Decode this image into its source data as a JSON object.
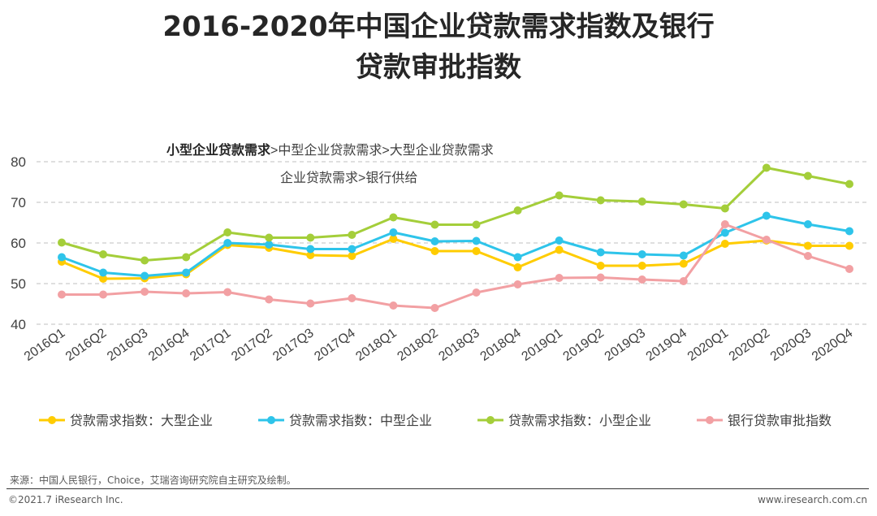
{
  "title_line1": "2016-2020年中国企业贷款需求指数及银行",
  "title_line2": "贷款审批指数",
  "annotation_line1_bold": "小型企业贷款需求",
  "annotation_line1_rest": ">中型企业贷款需求>大型企业贷款需求",
  "annotation_line2": "企业贷款需求>银行供给",
  "source": "来源：中国人民银行，Choice，艾瑞咨询研究院自主研究及绘制。",
  "copyright": "©2021.7 iResearch Inc.",
  "website": "www.iresearch.com.cn",
  "chart_data": {
    "type": "line",
    "categories": [
      "2016Q1",
      "2016Q2",
      "2016Q3",
      "2016Q4",
      "2017Q1",
      "2017Q2",
      "2017Q3",
      "2017Q4",
      "2018Q1",
      "2018Q2",
      "2018Q3",
      "2018Q4",
      "2019Q1",
      "2019Q2",
      "2019Q3",
      "2019Q4",
      "2020Q1",
      "2020Q2",
      "2020Q3",
      "2020Q4"
    ],
    "ylim": [
      40,
      80
    ],
    "yticks": [
      40,
      50,
      60,
      70,
      80
    ],
    "grid": true,
    "legend_position": "bottom",
    "series": [
      {
        "name": "贷款需求指数：大型企业",
        "color": "#FFCC00",
        "values": [
          55.4,
          51.2,
          51.3,
          52.3,
          59.5,
          58.8,
          57.0,
          56.8,
          61.0,
          58.0,
          58.0,
          54.0,
          58.3,
          54.4,
          54.4,
          54.9,
          59.8,
          60.6,
          59.3,
          59.3
        ]
      },
      {
        "name": "贷款需求指数：中型企业",
        "color": "#2EC4EA",
        "values": [
          56.5,
          52.7,
          51.9,
          52.7,
          60.0,
          59.6,
          58.5,
          58.5,
          62.6,
          60.4,
          60.5,
          56.5,
          60.6,
          57.7,
          57.2,
          56.9,
          62.5,
          66.7,
          64.6,
          62.9
        ]
      },
      {
        "name": "贷款需求指数：小型企业",
        "color": "#A4CE3A",
        "values": [
          60.1,
          57.2,
          55.7,
          56.5,
          62.6,
          61.3,
          61.3,
          62.0,
          66.3,
          64.5,
          64.5,
          68.0,
          71.7,
          70.5,
          70.2,
          69.5,
          68.5,
          78.5,
          76.5,
          74.5
        ]
      },
      {
        "name": "银行贷款审批指数",
        "color": "#F2A0A3",
        "values": [
          47.3,
          47.3,
          48.0,
          47.6,
          47.9,
          46.1,
          45.1,
          46.4,
          44.6,
          44.0,
          47.8,
          49.8,
          51.4,
          51.5,
          51.0,
          50.6,
          64.6,
          60.8,
          56.8,
          53.6
        ]
      }
    ]
  }
}
